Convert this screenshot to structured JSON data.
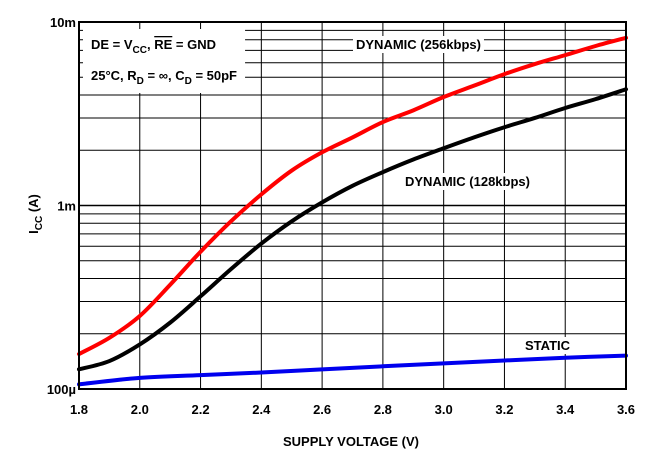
{
  "chart_data": {
    "type": "line",
    "xlabel": "SUPPLY VOLTAGE (V)",
    "ylabel": "I",
    "ylabel_sub": "CC",
    "ylabel_unit": " (A)",
    "xlim": [
      1.8,
      3.6
    ],
    "ylim": [
      0.0001,
      0.01
    ],
    "yscale": "log",
    "grid": true,
    "x_ticks": [
      1.8,
      2.0,
      2.2,
      2.4,
      2.6,
      2.8,
      3.0,
      3.2,
      3.4,
      3.6
    ],
    "x_tick_labels": [
      "1.8",
      "2.0",
      "2.2",
      "2.4",
      "2.6",
      "2.8",
      "3.0",
      "3.2",
      "3.4",
      "3.6"
    ],
    "y_major_ticks": [
      0.0001,
      0.001,
      0.01
    ],
    "y_tick_labels": [
      "100µ",
      "1m",
      "10m"
    ],
    "annotation": {
      "line1": {
        "a": "DE = V",
        "a_sub": "CC",
        "b": ", ",
        "c": "RE",
        "d": " = GND"
      },
      "line2": {
        "a": "25°C, R",
        "a_sub": "D",
        "b": " = ∞, C",
        "b_sub": "D",
        "c": " = 50pF"
      }
    },
    "series": [
      {
        "name": "DYNAMIC (256kbps)",
        "color": "#ff0000",
        "x": [
          1.8,
          1.9,
          2.0,
          2.1,
          2.2,
          2.3,
          2.4,
          2.5,
          2.6,
          2.7,
          2.8,
          2.9,
          3.0,
          3.1,
          3.2,
          3.3,
          3.4,
          3.5,
          3.6
        ],
        "y": [
          0.000155,
          0.00019,
          0.00025,
          0.00037,
          0.00056,
          0.00082,
          0.00115,
          0.00155,
          0.00195,
          0.00235,
          0.00285,
          0.0033,
          0.0039,
          0.0045,
          0.0052,
          0.0059,
          0.0066,
          0.0074,
          0.0082
        ]
      },
      {
        "name": "DYNAMIC (128kbps)",
        "color": "#000000",
        "x": [
          1.8,
          1.9,
          2.0,
          2.1,
          2.2,
          2.3,
          2.4,
          2.5,
          2.6,
          2.7,
          2.8,
          2.9,
          3.0,
          3.1,
          3.2,
          3.3,
          3.4,
          3.5,
          3.6
        ],
        "y": [
          0.000128,
          0.000142,
          0.000175,
          0.00023,
          0.00032,
          0.00045,
          0.00062,
          0.00082,
          0.00104,
          0.00128,
          0.00152,
          0.00178,
          0.00205,
          0.00235,
          0.00267,
          0.003,
          0.0034,
          0.0038,
          0.0043
        ]
      },
      {
        "name": "STATIC",
        "color": "#0000ee",
        "x": [
          1.8,
          2.0,
          2.2,
          2.4,
          2.6,
          2.8,
          3.0,
          3.2,
          3.4,
          3.6
        ],
        "y": [
          0.000106,
          0.000115,
          0.000119,
          0.000123,
          0.000128,
          0.000133,
          0.000138,
          0.000143,
          0.000148,
          0.000152
        ]
      }
    ]
  }
}
